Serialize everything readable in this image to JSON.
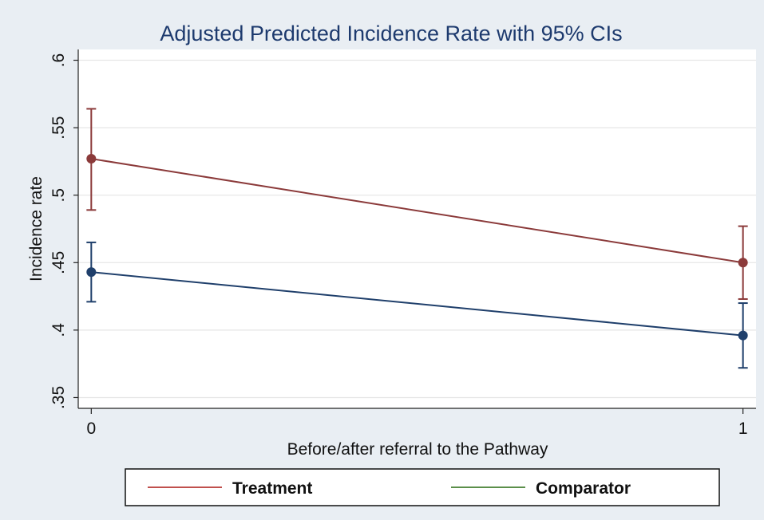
{
  "chart_data": {
    "type": "line",
    "title": "Adjusted Predicted Incidence Rate with 95% CIs",
    "xlabel": "Before/after referral to the Pathway",
    "ylabel": "Incidence rate",
    "x": [
      0,
      1
    ],
    "x_ticks": [
      "0",
      "1"
    ],
    "y_ticks": [
      ".35",
      ".4",
      ".45",
      ".5",
      ".55",
      ".6"
    ],
    "y_tick_values": [
      0.35,
      0.4,
      0.45,
      0.5,
      0.55,
      0.6
    ],
    "xlim": [
      -0.02,
      1.02
    ],
    "ylim": [
      0.342,
      0.608
    ],
    "grid": true,
    "legend_position": "bottom",
    "series": [
      {
        "name": "Treatment",
        "color": "#8b3a3a",
        "values": [
          0.527,
          0.45
        ],
        "ci_low": [
          0.489,
          0.423
        ],
        "ci_high": [
          0.564,
          0.477
        ]
      },
      {
        "name": "Comparator",
        "color": "#1f3f6b",
        "values": [
          0.443,
          0.396
        ],
        "ci_low": [
          0.421,
          0.372
        ],
        "ci_high": [
          0.465,
          0.42
        ]
      }
    ],
    "legend": [
      {
        "label": "Treatment",
        "color": "#c0504d"
      },
      {
        "label": "Comparator",
        "color": "#5b8f4a"
      }
    ]
  }
}
